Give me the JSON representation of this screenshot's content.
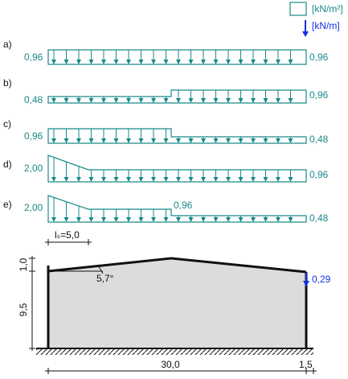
{
  "legend": {
    "area_unit": "[kN/m²]",
    "line_unit": "[kN/m]"
  },
  "cases": [
    {
      "label": "a)",
      "left": "0,96",
      "right": "0,96"
    },
    {
      "label": "b)",
      "left": "0,48",
      "right": "0,96"
    },
    {
      "label": "c)",
      "left": "0,96",
      "right": "0,48"
    },
    {
      "label": "d)",
      "left": "2,00",
      "right": "0,96"
    },
    {
      "label": "e)",
      "left": "2,00",
      "middle": "0,96",
      "right": "0,48"
    }
  ],
  "drift_length": "lₛ=5,0",
  "building": {
    "ridge_rise": "1,0",
    "eave_height": "9,5",
    "roof_angle": "5,7°",
    "line_load": "0,29",
    "width": "30,0",
    "overhang": "1,5"
  }
}
